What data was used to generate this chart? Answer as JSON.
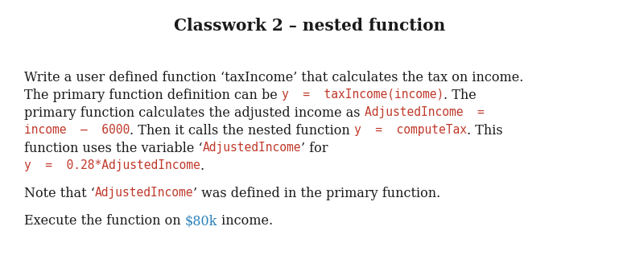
{
  "title": "Classwork 2 – nested function",
  "bg_color": "#ffffff",
  "title_color": "#1a1a1a",
  "text_color": "#1a1a1a",
  "code_color": "#c0392b",
  "dollar_color": "#2980b9",
  "title_fontsize": 14.5,
  "body_fontsize": 11.5,
  "code_fontsize": 10.5,
  "lines": [
    [
      {
        "text": "Write a user defined function ‘taxIncome’ that calculates the tax on income.",
        "style": "normal"
      }
    ],
    [
      {
        "text": "The primary function definition can be ",
        "style": "normal"
      },
      {
        "text": "y  =  taxIncome(income)",
        "style": "code"
      },
      {
        "text": ". The",
        "style": "normal"
      }
    ],
    [
      {
        "text": "primary function calculates the adjusted income as ",
        "style": "normal"
      },
      {
        "text": "AdjustedIncome  =",
        "style": "code"
      }
    ],
    [
      {
        "text": "income  –  6000",
        "style": "code"
      },
      {
        "text": ". Then it calls the nested function ",
        "style": "normal"
      },
      {
        "text": "y  =  computeTax",
        "style": "code"
      },
      {
        "text": ". This",
        "style": "normal"
      }
    ],
    [
      {
        "text": "function uses the variable ‘",
        "style": "normal"
      },
      {
        "text": "AdjustedIncome",
        "style": "code"
      },
      {
        "text": "’ for",
        "style": "normal"
      }
    ],
    [
      {
        "text": "y  =  0.28*AdjustedIncome",
        "style": "code"
      },
      {
        "text": ".",
        "style": "normal"
      }
    ],
    [],
    [
      {
        "text": "Note that ‘",
        "style": "normal"
      },
      {
        "text": "AdjustedIncome",
        "style": "code"
      },
      {
        "text": "’ was defined in the primary function.",
        "style": "normal"
      }
    ],
    [],
    [
      {
        "text": "Execute the function on ",
        "style": "normal"
      },
      {
        "text": "$80k",
        "style": "dollar"
      },
      {
        "text": " income.",
        "style": "normal"
      }
    ]
  ]
}
